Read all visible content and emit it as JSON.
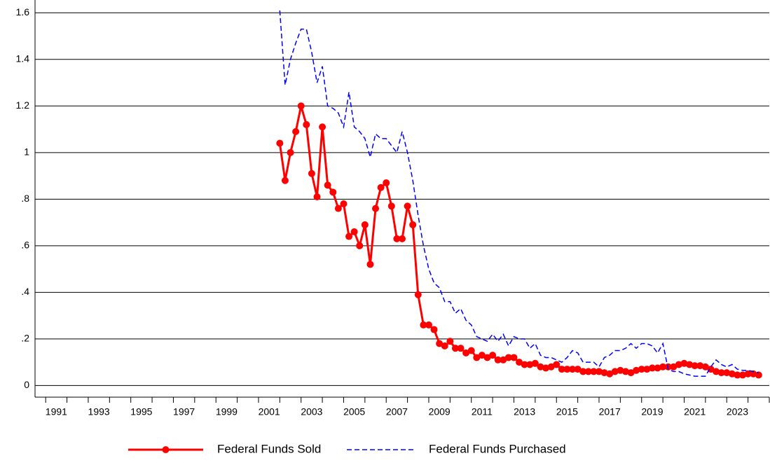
{
  "chart_data": {
    "type": "line",
    "x": [
      2002,
      2002.25,
      2002.5,
      2002.75,
      2003,
      2003.25,
      2003.5,
      2003.75,
      2004,
      2004.25,
      2004.5,
      2004.75,
      2005,
      2005.25,
      2005.5,
      2005.75,
      2006,
      2006.25,
      2006.5,
      2006.75,
      2007,
      2007.25,
      2007.5,
      2007.75,
      2008,
      2008.25,
      2008.5,
      2008.75,
      2009,
      2009.25,
      2009.5,
      2009.75,
      2010,
      2010.25,
      2010.5,
      2010.75,
      2011,
      2011.25,
      2011.5,
      2011.75,
      2012,
      2012.25,
      2012.5,
      2012.75,
      2013,
      2013.25,
      2013.5,
      2013.75,
      2014,
      2014.25,
      2014.5,
      2014.75,
      2015,
      2015.25,
      2015.5,
      2015.75,
      2016,
      2016.25,
      2016.5,
      2016.75,
      2017,
      2017.25,
      2017.5,
      2017.75,
      2018,
      2018.25,
      2018.5,
      2018.75,
      2019,
      2019.25,
      2019.5,
      2019.75,
      2020,
      2020.25,
      2020.5,
      2020.75,
      2021,
      2021.25,
      2021.5,
      2021.75,
      2022,
      2022.25,
      2022.5,
      2022.75,
      2023,
      2023.25,
      2023.5,
      2023.75,
      2024,
      2024.25,
      2024.5
    ],
    "series": [
      {
        "name": "Federal Funds Sold",
        "color": "#ff0000",
        "style": "solid",
        "markers": true,
        "values": [
          1.04,
          0.88,
          1.0,
          1.09,
          1.2,
          1.12,
          0.91,
          0.81,
          1.11,
          0.86,
          0.83,
          0.76,
          0.78,
          0.64,
          0.66,
          0.6,
          0.69,
          0.52,
          0.76,
          0.85,
          0.87,
          0.77,
          0.63,
          0.63,
          0.77,
          0.69,
          0.39,
          0.26,
          0.26,
          0.24,
          0.18,
          0.17,
          0.19,
          0.16,
          0.16,
          0.14,
          0.15,
          0.12,
          0.13,
          0.12,
          0.13,
          0.11,
          0.11,
          0.12,
          0.12,
          0.1,
          0.09,
          0.09,
          0.095,
          0.08,
          0.075,
          0.08,
          0.09,
          0.07,
          0.07,
          0.07,
          0.07,
          0.06,
          0.06,
          0.06,
          0.06,
          0.055,
          0.05,
          0.06,
          0.065,
          0.06,
          0.055,
          0.065,
          0.07,
          0.07,
          0.075,
          0.075,
          0.08,
          0.08,
          0.08,
          0.09,
          0.095,
          0.09,
          0.085,
          0.085,
          0.08,
          0.07,
          0.06,
          0.055,
          0.055,
          0.05,
          0.045,
          0.045,
          0.05,
          0.05,
          0.045
        ]
      },
      {
        "name": "Federal Funds Purchased",
        "color": "#0000ff",
        "style": "dashed",
        "markers": false,
        "values": [
          1.61,
          1.29,
          1.4,
          1.47,
          1.53,
          1.53,
          1.43,
          1.3,
          1.37,
          1.2,
          1.19,
          1.17,
          1.11,
          1.26,
          1.11,
          1.09,
          1.06,
          0.98,
          1.08,
          1.06,
          1.06,
          1.03,
          1.0,
          1.09,
          1.0,
          0.88,
          0.73,
          0.6,
          0.5,
          0.44,
          0.42,
          0.36,
          0.36,
          0.31,
          0.33,
          0.28,
          0.26,
          0.21,
          0.2,
          0.19,
          0.22,
          0.19,
          0.22,
          0.17,
          0.21,
          0.2,
          0.2,
          0.16,
          0.18,
          0.13,
          0.12,
          0.12,
          0.11,
          0.1,
          0.12,
          0.15,
          0.14,
          0.1,
          0.1,
          0.1,
          0.08,
          0.12,
          0.13,
          0.15,
          0.15,
          0.16,
          0.18,
          0.16,
          0.18,
          0.18,
          0.17,
          0.14,
          0.18,
          0.07,
          0.06,
          0.06,
          0.05,
          0.045,
          0.04,
          0.04,
          0.04,
          0.08,
          0.11,
          0.09,
          0.08,
          0.09,
          0.07,
          0.065,
          0.065,
          0.06,
          0.055
        ]
      }
    ],
    "xlim": [
      1990.5,
      2025
    ],
    "xticks": [
      {
        "value": 1991.5,
        "label": "1991"
      },
      {
        "value": 1993.5,
        "label": "1993"
      },
      {
        "value": 1995.5,
        "label": "1995"
      },
      {
        "value": 1997.5,
        "label": "1997"
      },
      {
        "value": 1999.5,
        "label": "1999"
      },
      {
        "value": 2001.5,
        "label": "2001"
      },
      {
        "value": 2003.5,
        "label": "2003"
      },
      {
        "value": 2005.5,
        "label": "2005"
      },
      {
        "value": 2007.5,
        "label": "2007"
      },
      {
        "value": 2009.5,
        "label": "2009"
      },
      {
        "value": 2011.5,
        "label": "2011"
      },
      {
        "value": 2013.5,
        "label": "2013"
      },
      {
        "value": 2015.5,
        "label": "2015"
      },
      {
        "value": 2017.5,
        "label": "2017"
      },
      {
        "value": 2019.5,
        "label": "2019"
      },
      {
        "value": 2021.5,
        "label": "2021"
      },
      {
        "value": 2023.5,
        "label": "2023"
      }
    ],
    "ylim": [
      -0.05,
      1.655
    ],
    "yticks": [
      0,
      {
        "value": 0.2,
        "label": ".2"
      },
      {
        "value": 0.4,
        "label": ".4"
      },
      {
        "value": 0.6,
        "label": ".6"
      },
      {
        "value": 0.8,
        "label": ".8"
      },
      1,
      1.2,
      1.4,
      1.6
    ],
    "grid": true,
    "legend": "bottom"
  }
}
